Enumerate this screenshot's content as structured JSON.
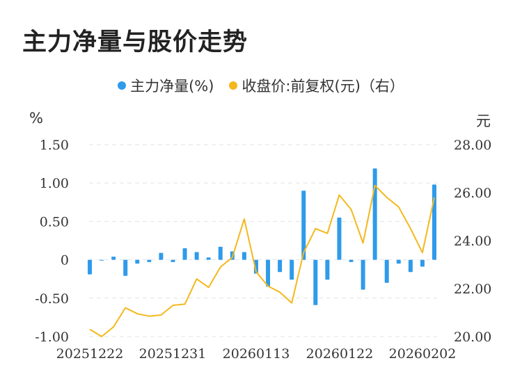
{
  "title": "主力净量与股价走势",
  "legend": [
    {
      "label": "主力净量(%)",
      "color": "#2f9bea"
    },
    {
      "label": "收盘价:前复权(元)（右）",
      "color": "#f4b81c"
    }
  ],
  "units": {
    "left": "%",
    "right": "元"
  },
  "chart_data": {
    "type": "bar+line",
    "x_ticks": [
      "20251222",
      "20251231",
      "20260113",
      "20260122",
      "20260202"
    ],
    "y_left": {
      "ticks": [
        "1.50",
        "1.00",
        "0.50",
        "0",
        "-0.50",
        "-1.00"
      ],
      "range": [
        -1.0,
        1.5
      ]
    },
    "y_right": {
      "ticks": [
        "28.00",
        "26.00",
        "24.00",
        "22.00",
        "20.00"
      ],
      "range": [
        20.0,
        28.0
      ]
    },
    "grid": true,
    "series": [
      {
        "name": "主力净量(%)",
        "type": "bar",
        "color": "#2f9bea",
        "values": [
          -0.19,
          -0.01,
          0.04,
          -0.21,
          -0.05,
          -0.03,
          0.09,
          -0.03,
          0.15,
          0.1,
          0.03,
          0.17,
          0.11,
          0.1,
          -0.18,
          -0.35,
          -0.16,
          -0.26,
          0.9,
          -0.59,
          -0.26,
          0.55,
          -0.03,
          -0.39,
          1.19,
          -0.3,
          -0.05,
          -0.16,
          -0.09,
          0.98
        ]
      },
      {
        "name": "收盘价:前复权(元)（右）",
        "type": "line",
        "color": "#f4b81c",
        "values": [
          20.3,
          20.0,
          20.4,
          21.2,
          20.95,
          20.85,
          20.9,
          21.3,
          21.35,
          22.4,
          22.05,
          22.9,
          23.3,
          24.9,
          22.7,
          22.1,
          21.85,
          21.4,
          23.5,
          24.5,
          24.3,
          25.9,
          25.3,
          23.9,
          26.3,
          25.8,
          25.4,
          24.5,
          23.5,
          25.8
        ]
      }
    ]
  }
}
